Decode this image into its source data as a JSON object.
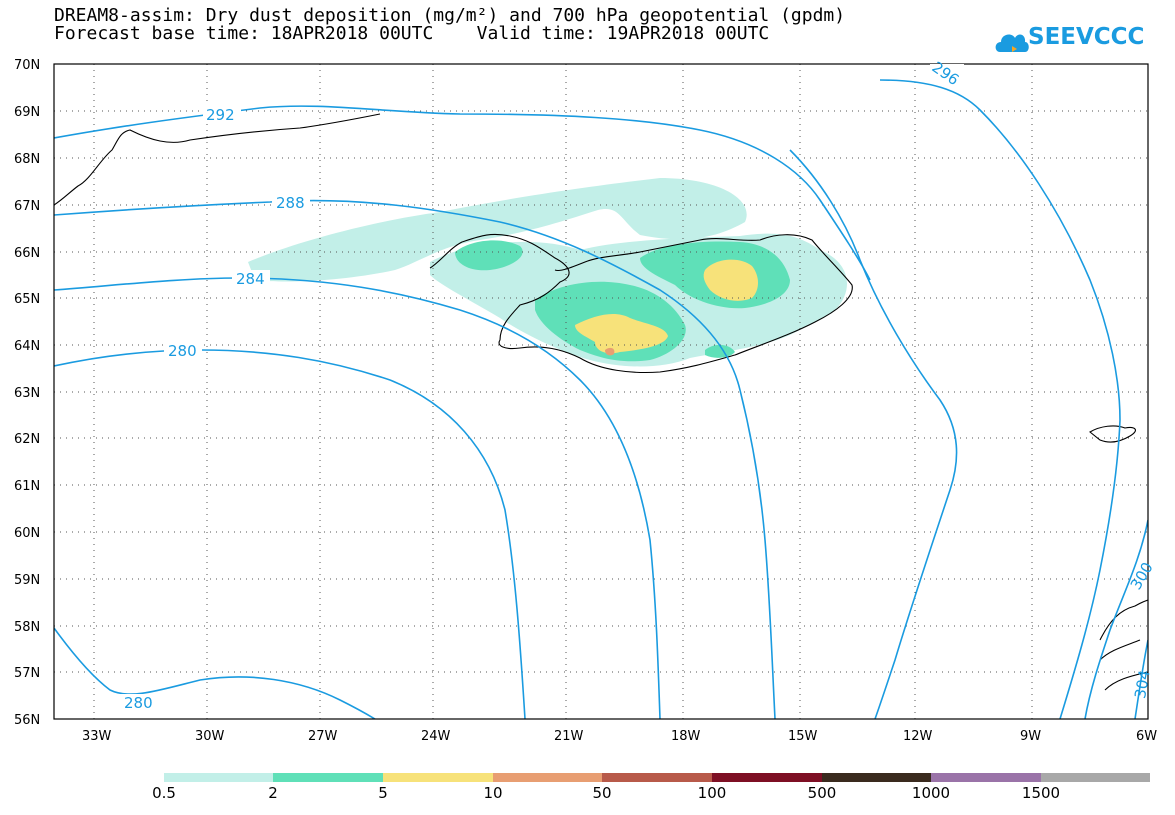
{
  "title_line1": "DREAM8-assim: Dry dust deposition (mg/m²) and 700 hPa geopotential (gpdm)",
  "title_line2": "Forecast base time: 18APR2018 00UTC    Valid time: 19APR2018 00UTC",
  "logo": {
    "text": "SEEVCCC",
    "icon": "cloud-icon"
  },
  "latitude_labels": [
    "70N",
    "69N",
    "68N",
    "67N",
    "66N",
    "65N",
    "64N",
    "63N",
    "62N",
    "61N",
    "60N",
    "59N",
    "58N",
    "57N",
    "56N"
  ],
  "longitude_labels": [
    "33W",
    "30W",
    "27W",
    "24W",
    "21W",
    "18W",
    "15W",
    "12W",
    "9W",
    "6W"
  ],
  "contour_labels": [
    {
      "text": "292",
      "lat": 69.0,
      "lon": -26.0
    },
    {
      "text": "288",
      "lat": 67.0,
      "lon": -21.5
    },
    {
      "text": "284",
      "lat": 65.2,
      "lon": -25.4
    },
    {
      "text": "280",
      "lat": 63.9,
      "lon": -29.7
    },
    {
      "text": "280",
      "lat": 56.3,
      "lon": -31.9
    },
    {
      "text": "296",
      "lat": 69.3,
      "lon": -11.3
    },
    {
      "text": "300",
      "lat": 58.9,
      "lon": -6.2
    },
    {
      "text": "304",
      "lat": 56.6,
      "lon": -6.1
    }
  ],
  "legend": {
    "labels": [
      "0.5",
      "2",
      "5",
      "10",
      "50",
      "100",
      "500",
      "1000",
      "1500"
    ],
    "colors": [
      "#c2efe8",
      "#5fe0b8",
      "#f7e27a",
      "#e89e72",
      "#b85a4a",
      "#7e0f24",
      "#3a2a1e",
      "#9a73a8",
      "#a8a8a8"
    ]
  },
  "colors": {
    "contour": "#1a9be0",
    "grid": "#555555"
  }
}
